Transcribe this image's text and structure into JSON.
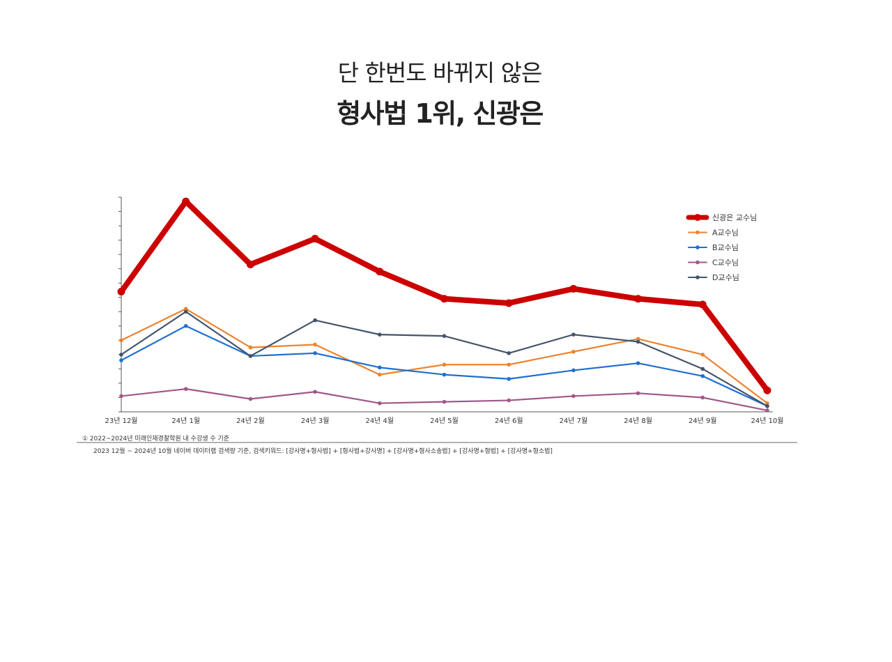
{
  "header": {
    "subtitle": "단 한번도 바뀌지 않은",
    "title": "형사법 1위, 신광은"
  },
  "chart_data": {
    "type": "line",
    "categories": [
      "23년 12월",
      "24년 1월",
      "24년 2월",
      "24년 3월",
      "24년 4월",
      "24년 5월",
      "24년 6월",
      "24년 7월",
      "24년 8월",
      "24년 9월",
      "24년 10월"
    ],
    "ylim": [
      0,
      15
    ],
    "y_ticks_count": 15,
    "grid": false,
    "legend_position": "top-right",
    "series": [
      {
        "name": "신광은 교수님",
        "color": "#cc0000",
        "bold": true,
        "values": [
          8.4,
          14.7,
          10.3,
          12.1,
          9.8,
          7.9,
          7.6,
          8.6,
          7.9,
          7.5,
          1.5
        ]
      },
      {
        "name": "A교수님",
        "color": "#f0822e",
        "values": [
          5.0,
          7.2,
          4.5,
          4.7,
          2.6,
          3.3,
          3.3,
          4.2,
          5.1,
          4.0,
          0.6
        ]
      },
      {
        "name": "B교수님",
        "color": "#1f6fd1",
        "values": [
          3.6,
          6.0,
          3.9,
          4.1,
          3.1,
          2.6,
          2.3,
          2.9,
          3.4,
          2.5,
          0.4
        ]
      },
      {
        "name": "C교수님",
        "color": "#a0578a",
        "values": [
          1.1,
          1.6,
          0.9,
          1.4,
          0.6,
          0.7,
          0.8,
          1.1,
          1.3,
          1.0,
          0.1
        ]
      },
      {
        "name": "D교수님",
        "color": "#44546a",
        "values": [
          4.0,
          7.0,
          3.9,
          6.4,
          5.4,
          5.3,
          4.1,
          5.4,
          4.9,
          3.0,
          0.4
        ]
      }
    ],
    "notes": [
      "① 2022~2024년 미래인재경찰학원 내 수강생 수 기준",
      "2023 12월 ~ 2024년 10월 네이버 데이터랩 검색량 기준, 검색키워드: [강사명+형사법] + [형사법+강사명] + [강사명+형사소송법] + [강사명+형법] + [강사명+형소법]"
    ]
  }
}
